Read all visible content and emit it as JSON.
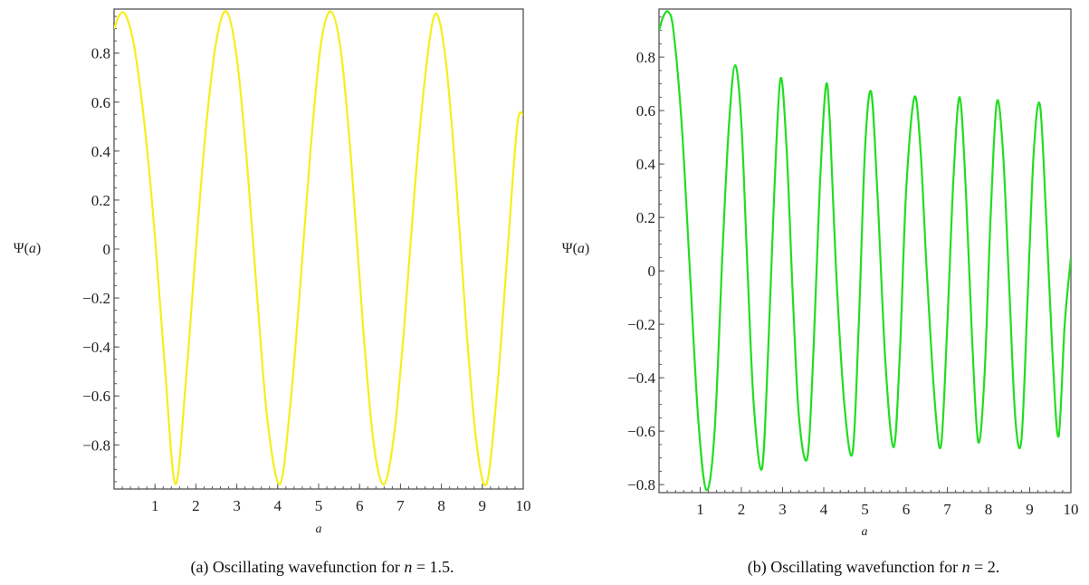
{
  "chart_data": [
    {
      "type": "line",
      "panel": "a",
      "caption": "(a) Oscillating wavefunction for n = 1.5.",
      "caption_prefix": "(a) Oscillating wavefunction for ",
      "caption_var": "n",
      "caption_suffix": " = 1.5.",
      "ylabel": "Ψ(a)",
      "ylabel_prefix": "Ψ(",
      "ylabel_var": "a",
      "ylabel_suffix": ")",
      "xlabel": "a",
      "xlim": [
        0,
        10
      ],
      "ylim": [
        -0.98,
        0.98
      ],
      "x_ticks": [
        "1",
        "2",
        "3",
        "4",
        "5",
        "6",
        "7",
        "8",
        "9",
        "10"
      ],
      "y_ticks": [
        "0.8",
        "0.6",
        "0.4",
        "0.2",
        "0",
        "−0.2",
        "−0.4",
        "−0.6",
        "−0.8"
      ],
      "series": [
        {
          "color": "#f5ef1a",
          "x": [
            0.0,
            0.15,
            0.3,
            0.5,
            0.75,
            1.0,
            1.25,
            1.5,
            1.75,
            2.0,
            2.25,
            2.5,
            2.75,
            3.0,
            3.25,
            3.5,
            3.75,
            4.05,
            4.3,
            4.55,
            4.8,
            5.05,
            5.3,
            5.55,
            5.8,
            6.1,
            6.35,
            6.6,
            6.85,
            7.1,
            7.35,
            7.6,
            7.85,
            8.1,
            8.35,
            8.6,
            8.85,
            9.1,
            9.35,
            9.6,
            9.85,
            10.0
          ],
          "y": [
            0.9,
            0.96,
            0.95,
            0.82,
            0.5,
            0.05,
            -0.5,
            -0.96,
            -0.55,
            0.0,
            0.5,
            0.85,
            0.97,
            0.78,
            0.35,
            -0.2,
            -0.7,
            -0.96,
            -0.65,
            -0.15,
            0.4,
            0.83,
            0.97,
            0.8,
            0.35,
            -0.35,
            -0.8,
            -0.96,
            -0.75,
            -0.3,
            0.25,
            0.7,
            0.96,
            0.78,
            0.3,
            -0.3,
            -0.78,
            -0.96,
            -0.6,
            -0.05,
            0.5,
            0.55
          ]
        }
      ]
    },
    {
      "type": "line",
      "panel": "b",
      "caption": "(b) Oscillating wavefunction for n = 2.",
      "caption_prefix": "(b) Oscillating wavefunction for ",
      "caption_var": "n",
      "caption_suffix": " = 2.",
      "ylabel": "Ψ(a)",
      "ylabel_prefix": "Ψ(",
      "ylabel_var": "a",
      "ylabel_suffix": ")",
      "xlabel": "a",
      "xlim": [
        0,
        10
      ],
      "ylim": [
        -0.83,
        0.98
      ],
      "x_ticks": [
        "1",
        "2",
        "3",
        "4",
        "5",
        "6",
        "7",
        "8",
        "9",
        "10"
      ],
      "y_ticks": [
        "0.8",
        "0.6",
        "0.4",
        "0.2",
        "0",
        "−0.2",
        "−0.4",
        "−0.6",
        "−0.8"
      ],
      "series": [
        {
          "color": "#22dd22",
          "x": [
            0.0,
            0.1,
            0.22,
            0.35,
            0.55,
            0.75,
            0.95,
            1.15,
            1.35,
            1.55,
            1.7,
            1.85,
            2.0,
            2.15,
            2.3,
            2.5,
            2.65,
            2.8,
            2.95,
            3.1,
            3.25,
            3.4,
            3.6,
            3.75,
            3.9,
            4.05,
            4.15,
            4.3,
            4.5,
            4.7,
            4.85,
            5.0,
            5.15,
            5.3,
            5.5,
            5.7,
            5.85,
            6.0,
            6.2,
            6.35,
            6.5,
            6.7,
            6.85,
            7.0,
            7.15,
            7.3,
            7.45,
            7.6,
            7.75,
            7.9,
            8.05,
            8.2,
            8.35,
            8.5,
            8.65,
            8.8,
            8.95,
            9.1,
            9.25,
            9.4,
            9.55,
            9.7,
            9.85,
            10.0
          ],
          "y": [
            0.9,
            0.95,
            0.97,
            0.9,
            0.55,
            0.0,
            -0.55,
            -0.82,
            -0.6,
            0.1,
            0.55,
            0.77,
            0.55,
            0.0,
            -0.5,
            -0.74,
            -0.3,
            0.3,
            0.72,
            0.45,
            -0.1,
            -0.55,
            -0.7,
            -0.3,
            0.3,
            0.69,
            0.55,
            0.0,
            -0.5,
            -0.68,
            -0.2,
            0.45,
            0.67,
            0.3,
            -0.35,
            -0.66,
            -0.3,
            0.3,
            0.65,
            0.45,
            0.0,
            -0.5,
            -0.65,
            -0.2,
            0.35,
            0.65,
            0.3,
            -0.25,
            -0.64,
            -0.4,
            0.2,
            0.63,
            0.45,
            -0.05,
            -0.55,
            -0.63,
            -0.1,
            0.45,
            0.62,
            0.2,
            -0.3,
            -0.62,
            -0.2,
            0.05
          ]
        }
      ]
    }
  ]
}
